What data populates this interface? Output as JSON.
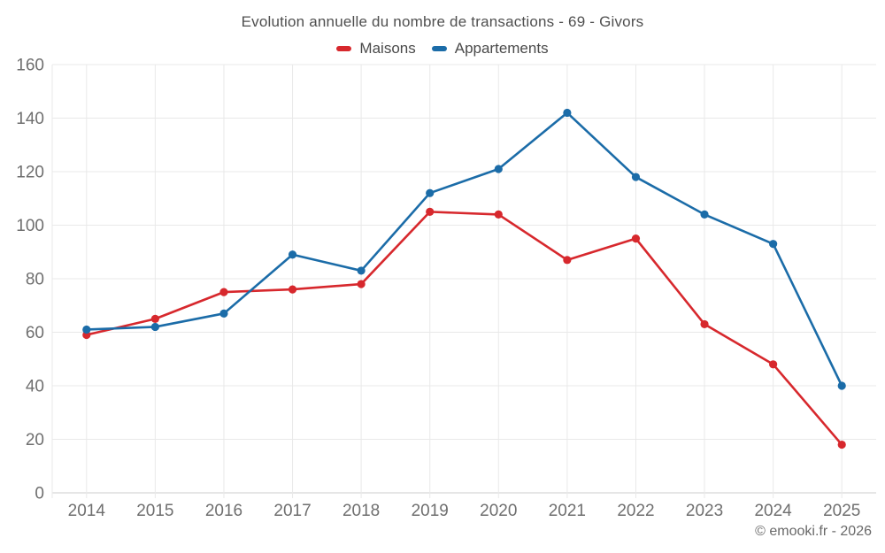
{
  "title": "Evolution annuelle du nombre de transactions - 69 - Givors",
  "footer": "© emooki.fr - 2026",
  "legend": {
    "items": [
      {
        "label": "Maisons",
        "color": "#d7282d"
      },
      {
        "label": "Appartements",
        "color": "#1b6ca8"
      }
    ]
  },
  "colors": {
    "background": "#ffffff",
    "grid": "#e9e9e9",
    "axis_line": "#cdcdcd",
    "tick_text": "#6f6f6f",
    "title_text": "#4f4f4f",
    "legend_text": "#4a4a4a",
    "footer_text": "#696969",
    "maisons": "#d7282d",
    "appartements": "#1b6ca8"
  },
  "chart_data": {
    "type": "line",
    "title": "Evolution annuelle du nombre de transactions - 69 - Givors",
    "categories": [
      "2014",
      "2015",
      "2016",
      "2017",
      "2018",
      "2019",
      "2020",
      "2021",
      "2022",
      "2023",
      "2024",
      "2025"
    ],
    "series": [
      {
        "name": "Maisons",
        "color": "#d7282d",
        "values": [
          59,
          65,
          75,
          76,
          78,
          105,
          104,
          87,
          95,
          63,
          48,
          18
        ]
      },
      {
        "name": "Appartements",
        "color": "#1b6ca8",
        "values": [
          61,
          62,
          67,
          89,
          83,
          112,
          121,
          142,
          118,
          104,
          93,
          40
        ]
      }
    ],
    "xlabel": "",
    "ylabel": "",
    "ylim": [
      0,
      160
    ],
    "yticks": [
      0,
      20,
      40,
      60,
      80,
      100,
      120,
      140,
      160
    ],
    "grid": true,
    "legend_position": "top",
    "marker": "circle"
  }
}
